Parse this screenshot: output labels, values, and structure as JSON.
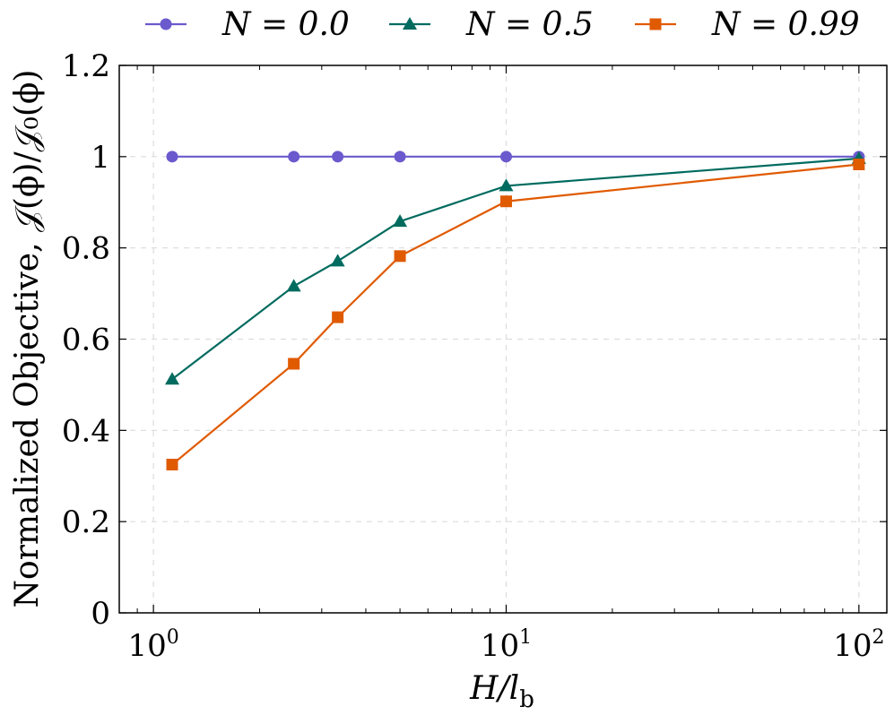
{
  "chart_data": {
    "type": "line",
    "xscale": "log",
    "xlim": [
      0.8,
      120
    ],
    "ylim": [
      0,
      1.2
    ],
    "xlabel": "H/l_b",
    "xlabel_main": "H/l",
    "xlabel_sub": "b",
    "ylabel": "Normalized Objective, 𝒥(ϕ)/𝒥₀(ϕ)",
    "grid": true,
    "legend_position": "top",
    "x_ticks": [
      {
        "value": 1,
        "base": "10",
        "exp": "0"
      },
      {
        "value": 10,
        "base": "10",
        "exp": "1"
      },
      {
        "value": 100,
        "base": "10",
        "exp": "2"
      }
    ],
    "y_ticks": [
      {
        "value": 0,
        "label": "0"
      },
      {
        "value": 0.2,
        "label": "0.2"
      },
      {
        "value": 0.4,
        "label": "0.4"
      },
      {
        "value": 0.6,
        "label": "0.6"
      },
      {
        "value": 0.8,
        "label": "0.8"
      },
      {
        "value": 1.0,
        "label": "1"
      },
      {
        "value": 1.2,
        "label": "1.2"
      }
    ],
    "x": [
      1.13,
      2.5,
      3.33,
      5,
      10,
      100
    ],
    "series": [
      {
        "name": "N = 0.0",
        "color": "#6a5acd",
        "marker": "circle",
        "values": [
          1.0,
          1.0,
          1.0,
          1.0,
          1.0,
          1.0
        ]
      },
      {
        "name": "N = 0.5",
        "color": "#006b5f",
        "marker": "triangle",
        "values": [
          0.512,
          0.716,
          0.771,
          0.858,
          0.936,
          0.996
        ]
      },
      {
        "name": "N = 0.99",
        "color": "#e05a00",
        "marker": "square",
        "values": [
          0.325,
          0.546,
          0.648,
          0.782,
          0.902,
          0.983
        ]
      }
    ]
  }
}
